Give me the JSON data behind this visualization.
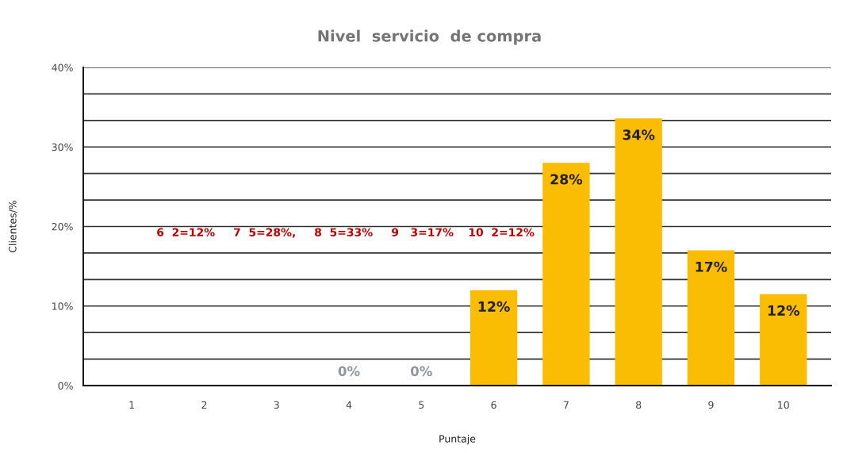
{
  "chart_data": {
    "type": "bar",
    "title": "Nivel  servicio  de compra",
    "xlabel": "Puntaje",
    "ylabel": "Clientes/%",
    "categories": [
      "1",
      "2",
      "3",
      "4",
      "5",
      "6",
      "7",
      "8",
      "9",
      "10"
    ],
    "values": [
      null,
      null,
      null,
      0,
      0,
      12,
      28,
      33.6,
      17,
      11.5
    ],
    "value_labels": [
      null,
      null,
      null,
      "0%",
      "0%",
      "12%",
      "28%",
      "34%",
      "17%",
      "12%"
    ],
    "color": "#fbbc04",
    "ylim": [
      0,
      40
    ],
    "yticks": [
      {
        "value": 0,
        "label": "0%"
      },
      {
        "value": 3.33,
        "label": null
      },
      {
        "value": 6.67,
        "label": null
      },
      {
        "value": 10,
        "label": "10%"
      },
      {
        "value": 13.33,
        "label": null
      },
      {
        "value": 16.67,
        "label": null
      },
      {
        "value": 20,
        "label": "20%"
      },
      {
        "value": 23.33,
        "label": null
      },
      {
        "value": 26.67,
        "label": null
      },
      {
        "value": 30,
        "label": "30%"
      },
      {
        "value": 33.33,
        "label": null
      },
      {
        "value": 36.67,
        "label": null
      },
      {
        "value": 40,
        "label": "40%"
      }
    ],
    "grid": "y",
    "annotations": [
      "6  2=12%",
      "7  5=28%,",
      "8  5=33%",
      "9   3=17%",
      "10  2=12%"
    ]
  }
}
